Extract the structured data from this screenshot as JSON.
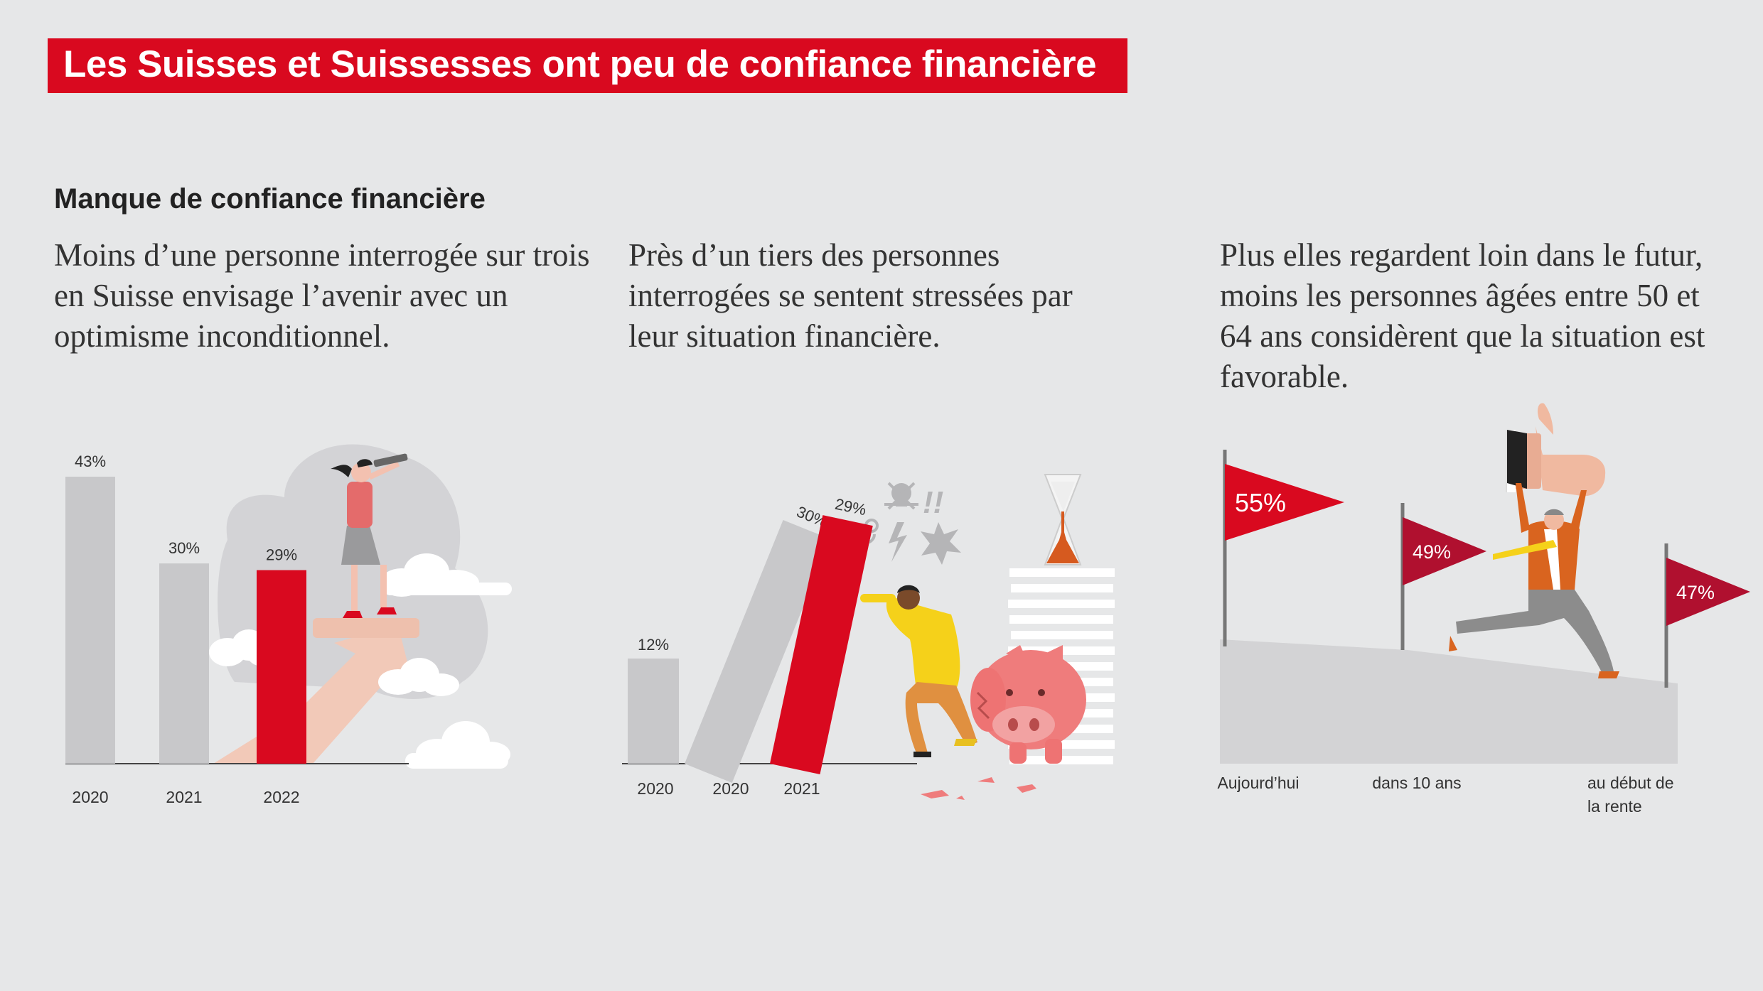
{
  "page_title": "Les Suisses et Suissesses ont peu de confiance financière",
  "section_title": "Manque de confiance financière",
  "paragraphs": [
    "Moins d’une personne interrogée sur trois en Suisse envisage l’avenir avec un optimisme inconditionnel.",
    "Près d’un tiers des personnes interrogées se sentent stressées par leur situation financière.",
    "Plus elles regardent loin dans le futur, moins les personnes âgées entre 50 et 64 ans considèrent que la situation est favorable."
  ],
  "colors": {
    "accent": "#d9091f",
    "bar_gray": "#c8c8ca",
    "flag_dark": "#b0102f",
    "background": "#e6e7e8"
  },
  "chart_data": [
    {
      "type": "bar",
      "categories": [
        "2020",
        "2021",
        "2022"
      ],
      "values": [
        43,
        30,
        29
      ],
      "value_labels": [
        "43%",
        "30%",
        "29%"
      ],
      "highlight": [
        false,
        false,
        true
      ],
      "ylim": [
        0,
        43
      ]
    },
    {
      "type": "bar",
      "categories": [
        "2020",
        "2020",
        "2021"
      ],
      "values": [
        12,
        30,
        29
      ],
      "value_labels": [
        "12%",
        "30%",
        "29%"
      ],
      "highlight": [
        false,
        false,
        true
      ],
      "ylim": [
        0,
        30
      ]
    },
    {
      "type": "line",
      "categories": [
        "Aujourd’hui",
        "dans 10 ans",
        "au début de la rente"
      ],
      "values": [
        55,
        49,
        47
      ],
      "value_labels": [
        "55%",
        "49%",
        "47%"
      ],
      "highlight": [
        true,
        false,
        false
      ]
    }
  ]
}
